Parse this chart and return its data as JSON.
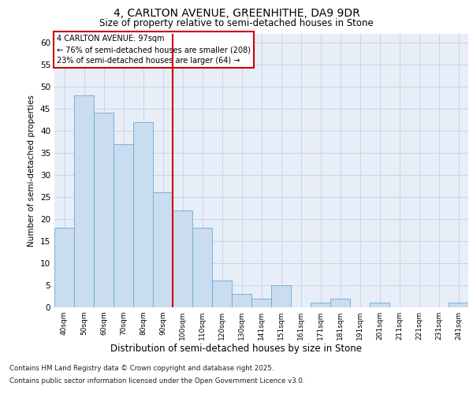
{
  "title_line1": "4, CARLTON AVENUE, GREENHITHE, DA9 9DR",
  "title_line2": "Size of property relative to semi-detached houses in Stone",
  "xlabel": "Distribution of semi-detached houses by size in Stone",
  "ylabel": "Number of semi-detached properties",
  "categories": [
    "40sqm",
    "50sqm",
    "60sqm",
    "70sqm",
    "80sqm",
    "90sqm",
    "100sqm",
    "110sqm",
    "120sqm",
    "130sqm",
    "141sqm",
    "151sqm",
    "161sqm",
    "171sqm",
    "181sqm",
    "191sqm",
    "201sqm",
    "211sqm",
    "221sqm",
    "231sqm",
    "241sqm"
  ],
  "values": [
    18,
    48,
    44,
    37,
    42,
    26,
    22,
    18,
    6,
    3,
    2,
    5,
    0,
    1,
    2,
    0,
    1,
    0,
    0,
    0,
    1
  ],
  "bar_color": "#c9dcf0",
  "bar_edge_color": "#6aaad4",
  "ylim": [
    0,
    62
  ],
  "yticks": [
    0,
    5,
    10,
    15,
    20,
    25,
    30,
    35,
    40,
    45,
    50,
    55,
    60
  ],
  "grid_color": "#c8d4e8",
  "background_color": "#e8eef8",
  "property_bin_index": 6,
  "annotation_title": "4 CARLTON AVENUE: 97sqm",
  "annotation_line1": "← 76% of semi-detached houses are smaller (208)",
  "annotation_line2": "23% of semi-detached houses are larger (64) →",
  "vline_color": "#cc0000",
  "annotation_box_color": "#cc0000",
  "footer_line1": "Contains HM Land Registry data © Crown copyright and database right 2025.",
  "footer_line2": "Contains public sector information licensed under the Open Government Licence v3.0."
}
